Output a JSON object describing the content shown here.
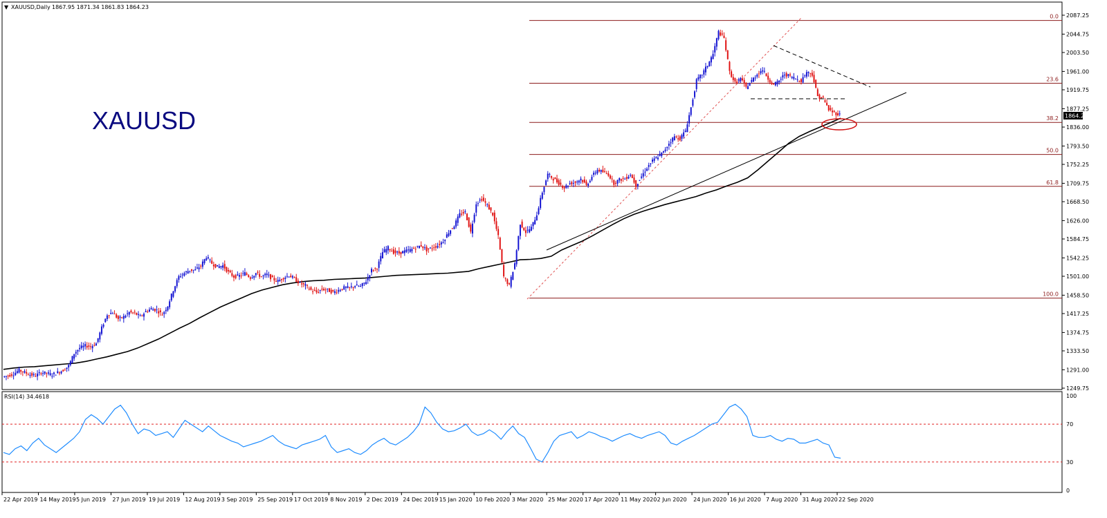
{
  "header": {
    "symbol": "XAUUSD,Daily",
    "ohlc": "1867.95 1871.34 1861.83 1864.23"
  },
  "watermark": "XAUUSD",
  "price_tag": "1864.23",
  "rsi_label": "RSI(14) 34.4618",
  "colors": {
    "bull": "#1414d2",
    "bear": "#e01414",
    "ma": "#000000",
    "rsi": "#1e8cff",
    "fib": "#8b1a1a",
    "watermark": "#0a0a80"
  },
  "chart_data": [
    {
      "type": "candlestick",
      "title": "XAUUSD,Daily",
      "ylim": [
        1249.75,
        2087.25
      ],
      "price_ticks": [
        "2087.25",
        "2044.75",
        "2003.50",
        "1961.00",
        "1919.75",
        "1877.25",
        "1836.00",
        "1793.50",
        "1752.25",
        "1709.75",
        "1668.50",
        "1626.00",
        "1584.75",
        "1542.25",
        "1501.00",
        "1458.50",
        "1417.25",
        "1374.75",
        "1333.50",
        "1291.00",
        "1249.75"
      ],
      "x_labels": [
        "22 Apr 2019",
        "14 May 2019",
        "5 Jun 2019",
        "27 Jun 2019",
        "19 Jul 2019",
        "12 Aug 2019",
        "3 Sep 2019",
        "25 Sep 2019",
        "17 Oct 2019",
        "8 Nov 2019",
        "2 Dec 2019",
        "24 Dec 2019",
        "15 Jan 2020",
        "10 Feb 2020",
        "3 Mar 2020",
        "25 Mar 2020",
        "17 Apr 2020",
        "11 May 2020",
        "2 Jun 2020",
        "24 Jun 2020",
        "16 Jul 2020",
        "7 Aug 2020",
        "31 Aug 2020",
        "22 Sep 2020"
      ],
      "close_series": [
        1275,
        1278,
        1282,
        1290,
        1285,
        1280,
        1278,
        1285,
        1283,
        1280,
        1285,
        1290,
        1300,
        1328,
        1340,
        1345,
        1343,
        1350,
        1385,
        1415,
        1420,
        1405,
        1410,
        1420,
        1418,
        1410,
        1422,
        1428,
        1425,
        1415,
        1435,
        1470,
        1500,
        1508,
        1515,
        1515,
        1525,
        1545,
        1530,
        1522,
        1525,
        1510,
        1500,
        1502,
        1508,
        1498,
        1508,
        1500,
        1505,
        1495,
        1490,
        1498,
        1503,
        1495,
        1485,
        1480,
        1470,
        1465,
        1472,
        1470,
        1465,
        1470,
        1475,
        1475,
        1480,
        1478,
        1490,
        1515,
        1520,
        1555,
        1565,
        1555,
        1553,
        1557,
        1560,
        1565,
        1570,
        1560,
        1565,
        1570,
        1580,
        1600,
        1615,
        1640,
        1645,
        1600,
        1665,
        1675,
        1660,
        1640,
        1590,
        1500,
        1480,
        1530,
        1620,
        1600,
        1610,
        1640,
        1690,
        1730,
        1720,
        1710,
        1700,
        1710,
        1712,
        1720,
        1705,
        1725,
        1740,
        1735,
        1730,
        1710,
        1718,
        1720,
        1730,
        1705,
        1725,
        1745,
        1760,
        1770,
        1780,
        1800,
        1815,
        1810,
        1828,
        1880,
        1940,
        1955,
        1975,
        2000,
        2050,
        2035,
        1960,
        1935,
        1945,
        1925,
        1940,
        1955,
        1965,
        1945,
        1930,
        1940,
        1955,
        1950,
        1945,
        1940,
        1960,
        1955,
        1905,
        1900,
        1875,
        1868,
        1864
      ],
      "ma_series": [
        1292,
        1295,
        1297,
        1298,
        1300,
        1302,
        1304,
        1306,
        1310,
        1315,
        1320,
        1326,
        1332,
        1340,
        1350,
        1360,
        1372,
        1384,
        1395,
        1408,
        1420,
        1432,
        1442,
        1452,
        1462,
        1470,
        1476,
        1482,
        1486,
        1489,
        1491,
        1492,
        1494,
        1495,
        1496,
        1497,
        1499,
        1501,
        1503,
        1504,
        1505,
        1506,
        1507,
        1508,
        1510,
        1512,
        1518,
        1523,
        1528,
        1533,
        1538,
        1539,
        1541,
        1546,
        1560,
        1570,
        1580,
        1592,
        1605,
        1618,
        1630,
        1640,
        1648,
        1655,
        1662,
        1668,
        1674,
        1680,
        1688,
        1695,
        1704,
        1712,
        1722,
        1740,
        1760,
        1780,
        1800,
        1815,
        1826,
        1836,
        1846,
        1856
      ],
      "fib_levels": [
        {
          "label": "0.0",
          "price": 2075.5
        },
        {
          "label": "23.6",
          "price": 1934.5
        },
        {
          "label": "38.2",
          "price": 1846.5
        },
        {
          "label": "50.0",
          "price": 1774.5
        },
        {
          "label": "61.8",
          "price": 1703.0
        },
        {
          "label": "100.0",
          "price": 1452.0
        }
      ],
      "last_price": 1864.23
    },
    {
      "type": "line",
      "title": "RSI(14) 34.4618",
      "ylim": [
        0,
        100
      ],
      "y_ticks": [
        "100",
        "70",
        "30",
        "0"
      ],
      "levels": [
        70,
        30
      ],
      "rsi_series": [
        40,
        38,
        44,
        47,
        42,
        50,
        55,
        48,
        44,
        40,
        45,
        50,
        55,
        62,
        75,
        80,
        76,
        70,
        78,
        86,
        90,
        82,
        70,
        60,
        65,
        63,
        58,
        60,
        62,
        56,
        65,
        74,
        70,
        66,
        62,
        68,
        63,
        58,
        55,
        52,
        50,
        46,
        48,
        50,
        52,
        55,
        58,
        52,
        48,
        46,
        44,
        48,
        50,
        52,
        54,
        58,
        46,
        40,
        42,
        44,
        40,
        38,
        42,
        48,
        52,
        55,
        50,
        48,
        52,
        56,
        62,
        70,
        88,
        82,
        72,
        65,
        62,
        63,
        66,
        70,
        62,
        58,
        60,
        64,
        60,
        54,
        62,
        68,
        60,
        56,
        45,
        33,
        30,
        40,
        52,
        58,
        60,
        62,
        55,
        58,
        62,
        60,
        57,
        55,
        52,
        55,
        58,
        60,
        57,
        55,
        58,
        60,
        62,
        58,
        50,
        48,
        52,
        55,
        58,
        62,
        66,
        70,
        72,
        80,
        88,
        91,
        86,
        78,
        58,
        56,
        56,
        58,
        54,
        52,
        55,
        54,
        50,
        50,
        52,
        54,
        50,
        48,
        35,
        34
      ]
    }
  ]
}
